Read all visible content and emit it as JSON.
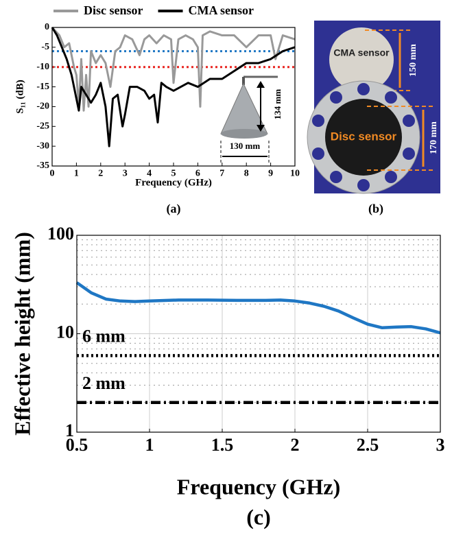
{
  "chart_data": [
    {
      "type": "line",
      "title": "(a)",
      "x_label": "Frequency (GHz)",
      "y_label": "S₁₁ (dB)",
      "xlim": [
        0,
        10
      ],
      "xticks": [
        0,
        1,
        2,
        3,
        4,
        5,
        6,
        7,
        8,
        9,
        10
      ],
      "ylim": [
        -35,
        0
      ],
      "yticks": [
        0,
        -5,
        -10,
        -15,
        -20,
        -25,
        -30,
        -35
      ],
      "grid": false,
      "legend": "top",
      "series": [
        {
          "name": "Disc sensor",
          "color": "#999999",
          "x": [
            0,
            0.3,
            0.5,
            0.7,
            0.9,
            1.0,
            1.1,
            1.2,
            1.3,
            1.4,
            1.5,
            1.6,
            1.8,
            2.0,
            2.2,
            2.4,
            2.6,
            2.8,
            3.0,
            3.3,
            3.6,
            3.8,
            4.0,
            4.3,
            4.6,
            4.9,
            5.0,
            5.2,
            5.5,
            5.8,
            6.0,
            6.1,
            6.2,
            6.5,
            7.0,
            7.5,
            8.0,
            8.5,
            9.0,
            9.2,
            9.5,
            10
          ],
          "values": [
            0,
            -2,
            -5,
            -4,
            -10,
            -12,
            -20,
            -8,
            -21,
            -12,
            -20,
            -6,
            -9,
            -7,
            -9,
            -15,
            -6,
            -5,
            -2,
            -3,
            -7,
            -3,
            -2,
            -4,
            -2,
            -3,
            -14,
            -3,
            -2,
            -3,
            -5,
            -20,
            -2,
            -1,
            -2,
            -2,
            -5,
            -2,
            -2,
            -8,
            -2,
            -3
          ]
        },
        {
          "name": "CMA sensor",
          "color": "#000000",
          "x": [
            0,
            0.2,
            0.4,
            0.6,
            0.8,
            1.0,
            1.1,
            1.2,
            1.4,
            1.6,
            1.8,
            2.0,
            2.2,
            2.35,
            2.5,
            2.7,
            2.9,
            3.0,
            3.2,
            3.5,
            3.8,
            4.0,
            4.2,
            4.35,
            4.5,
            4.7,
            5.0,
            5.3,
            5.6,
            6.0,
            6.5,
            7.0,
            7.5,
            8.0,
            8.5,
            9.0,
            9.5,
            10
          ],
          "values": [
            0,
            -2,
            -5,
            -8,
            -12,
            -18,
            -21,
            -15,
            -17,
            -19,
            -17,
            -14,
            -20,
            -30,
            -18,
            -17,
            -25,
            -22,
            -15,
            -15,
            -16,
            -18,
            -17,
            -24,
            -14,
            -15,
            -16,
            -15,
            -14,
            -15,
            -13,
            -13,
            -11,
            -9,
            -9,
            -8,
            -6,
            -5
          ]
        }
      ],
      "hlines": [
        {
          "value": -6,
          "color": "#1f77c4",
          "style": "dotted"
        },
        {
          "value": -10,
          "color": "#e8231f",
          "style": "dotted"
        }
      ],
      "annotations": [
        "130 mm",
        "134 mm"
      ]
    },
    {
      "type": "line",
      "title": "(c)",
      "x_label": "Frequency (GHz)",
      "y_label": "Effective height (mm)",
      "xlim": [
        0.5,
        3
      ],
      "xticks": [
        0.5,
        1,
        1.5,
        2,
        2.5,
        3
      ],
      "ylim": [
        1,
        100
      ],
      "yticks": [
        1,
        10,
        100
      ],
      "log_y": true,
      "grid": true,
      "series": [
        {
          "color": "#1f77c4",
          "x": [
            0.5,
            0.6,
            0.7,
            0.8,
            0.9,
            1.0,
            1.2,
            1.4,
            1.6,
            1.8,
            1.9,
            2.0,
            2.1,
            2.2,
            2.3,
            2.4,
            2.5,
            2.6,
            2.7,
            2.8,
            2.9,
            3.0
          ],
          "values": [
            33,
            26,
            22.5,
            21.5,
            21.2,
            21.5,
            22,
            22,
            21.8,
            21.8,
            22,
            21.5,
            20.5,
            19,
            17,
            14.5,
            12.5,
            11.5,
            11.7,
            11.8,
            11.2,
            10.2
          ]
        }
      ],
      "hlines": [
        {
          "value": 6,
          "label": "6 mm",
          "color": "#000000",
          "style": "dotted"
        },
        {
          "value": 2,
          "label": "2 mm",
          "color": "#000000",
          "style": "dashdot"
        }
      ]
    }
  ],
  "photo": {
    "title": "(b)",
    "cma_label": "CMA sensor",
    "cma_size": "150 mm",
    "disc_label": "Disc sensor",
    "disc_size": "170 mm"
  }
}
